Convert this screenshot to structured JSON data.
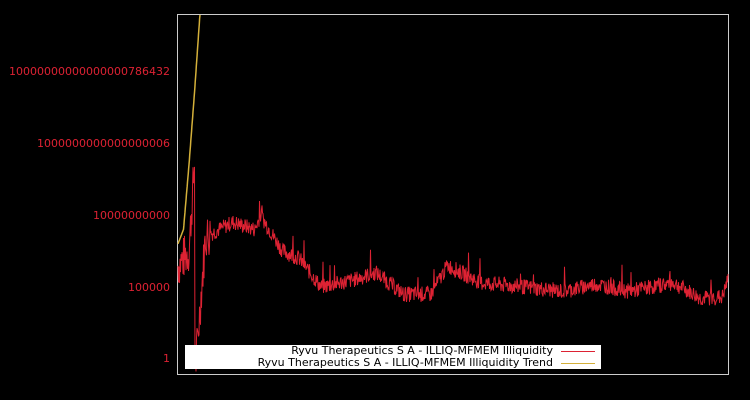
{
  "chart_data": {
    "type": "line",
    "title": "",
    "xlabel": "",
    "ylabel": "",
    "yscale": "log",
    "ytick_labels": [
      "10000000000000000786432",
      "1000000000000000006",
      "10000000000",
      "100000",
      "1"
    ],
    "ytick_values": [
      1e+22,
      1e+18,
      10000000000.0,
      100000.0,
      1
    ],
    "grid": false,
    "legend_position": "lower center",
    "series": [
      {
        "name": "Ryvu Therapeutics S A - ILLIQ-MFMEM Illiquidity",
        "color": "#dd2233",
        "approx_log10_profile": [
          {
            "x_frac": 0.0,
            "log10": 6.5
          },
          {
            "x_frac": 0.02,
            "log10": 7.5
          },
          {
            "x_frac": 0.03,
            "log10": 13.5
          },
          {
            "x_frac": 0.031,
            "log10": -1.0
          },
          {
            "x_frac": 0.05,
            "log10": 8.5
          },
          {
            "x_frac": 0.1,
            "log10": 9.5
          },
          {
            "x_frac": 0.14,
            "log10": 9.0
          },
          {
            "x_frac": 0.15,
            "log10": 10.0
          },
          {
            "x_frac": 0.19,
            "log10": 7.5
          },
          {
            "x_frac": 0.22,
            "log10": 7.0
          },
          {
            "x_frac": 0.26,
            "log10": 5.0
          },
          {
            "x_frac": 0.32,
            "log10": 5.5
          },
          {
            "x_frac": 0.36,
            "log10": 6.0
          },
          {
            "x_frac": 0.41,
            "log10": 4.5
          },
          {
            "x_frac": 0.46,
            "log10": 4.5
          },
          {
            "x_frac": 0.49,
            "log10": 6.5
          },
          {
            "x_frac": 0.55,
            "log10": 5.3
          },
          {
            "x_frac": 0.63,
            "log10": 5.0
          },
          {
            "x_frac": 0.7,
            "log10": 4.7
          },
          {
            "x_frac": 0.76,
            "log10": 5.2
          },
          {
            "x_frac": 0.82,
            "log10": 4.7
          },
          {
            "x_frac": 0.9,
            "log10": 5.3
          },
          {
            "x_frac": 0.95,
            "log10": 4.2
          },
          {
            "x_frac": 0.99,
            "log10": 4.3
          },
          {
            "x_frac": 1.0,
            "log10": 5.5
          }
        ]
      },
      {
        "name": "Ryvu Therapeutics S A - ILLIQ-MFMEM Illiquidity Trend",
        "color": "#d4b03a",
        "approx_log10_profile": [
          {
            "x_frac": 0.0,
            "log10": 8.0
          },
          {
            "x_frac": 0.01,
            "log10": 9.0
          },
          {
            "x_frac": 0.02,
            "log10": 13.5
          },
          {
            "x_frac": 0.03,
            "log10": 18.5
          },
          {
            "x_frac": 0.04,
            "log10": 24.0
          }
        ]
      }
    ]
  },
  "legend": {
    "items": [
      {
        "label": "Ryvu Therapeutics S A - ILLIQ-MFMEM Illiquidity",
        "color": "#dd2233"
      },
      {
        "label": "Ryvu Therapeutics S A - ILLIQ-MFMEM Illiquidity Trend",
        "color": "#d4b03a"
      }
    ]
  },
  "axes": {
    "y_labels": [
      "10000000000000000786432",
      "1000000000000000006",
      "10000000000",
      "100000",
      "1"
    ]
  }
}
